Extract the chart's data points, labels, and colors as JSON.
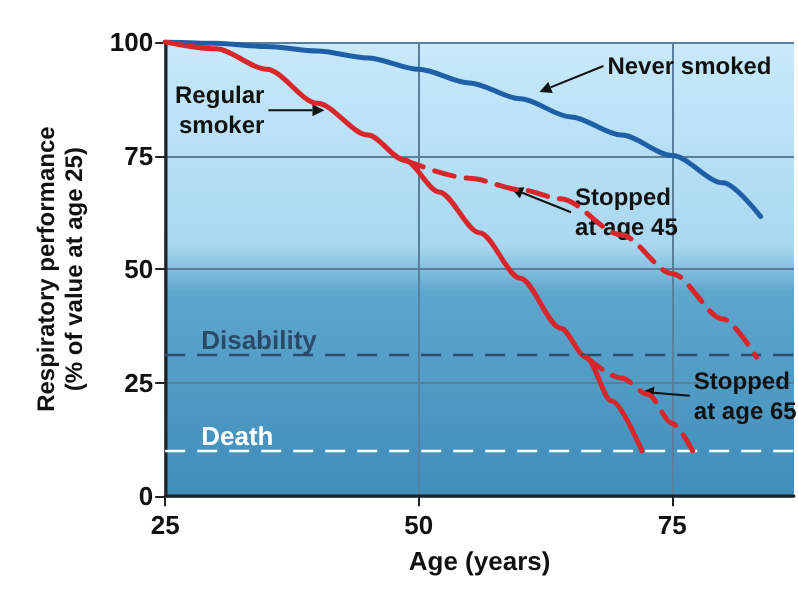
{
  "chart_data": {
    "type": "line",
    "xlabel": "Age (years)",
    "ylabel": "Respiratory performance\n(% of value at age 25)",
    "xlim": [
      25,
      87
    ],
    "xticks": [
      25,
      50,
      75
    ],
    "ylim": [
      0,
      100
    ],
    "yticks": [
      0,
      25,
      50,
      75,
      100
    ],
    "grid": true,
    "marker": "none",
    "series": [
      {
        "color": "#1f5fa8",
        "line_style": "solid",
        "x": [
          25,
          30,
          35,
          40,
          45,
          50,
          55,
          60,
          65,
          70,
          75,
          80,
          83.7
        ],
        "values": [
          100,
          99.7,
          99,
          98,
          96.5,
          94,
          91,
          87.5,
          83.5,
          79.5,
          75,
          69,
          61.6
        ]
      },
      {
        "color": "#d9262b",
        "line_style": "solid",
        "x": [
          25,
          30,
          35,
          40,
          45,
          48.6,
          52,
          56,
          60,
          64,
          66.5,
          69,
          72
        ],
        "values": [
          100,
          98.5,
          94,
          86.5,
          79.5,
          74,
          67,
          58,
          48,
          37,
          30.6,
          21,
          10
        ]
      },
      {
        "color": "#d9262b",
        "line_style": "dashed",
        "x": [
          48.6,
          55,
          60,
          64,
          70,
          75,
          80,
          83.3
        ],
        "values": [
          74,
          70,
          67.5,
          65.5,
          57.5,
          49,
          39,
          30.6
        ]
      },
      {
        "color": "#d9262b",
        "line_style": "dashed",
        "x": [
          66.5,
          70,
          72.6,
          75,
          77
        ],
        "values": [
          30.6,
          26,
          22.4,
          16,
          10
        ]
      }
    ],
    "ref_lines": [
      {
        "axis": "y",
        "value": 31,
        "label": "Disability",
        "color": "#2a4a6a",
        "line_style": "dashed"
      },
      {
        "axis": "y",
        "value": 10,
        "label": "Death",
        "color": "#ffffff",
        "line_style": "dashed"
      }
    ],
    "annotations": [
      {
        "text": "Never smoked",
        "x": 61.9,
        "y": 89
      },
      {
        "text": "Regular\nsmoker",
        "x": 40.7,
        "y": 85
      },
      {
        "text": "Stopped\nat age 45",
        "x": 59.1,
        "y": 67.8
      },
      {
        "text": "Stopped\nat age 65",
        "x": 72,
        "y": 23
      }
    ]
  }
}
